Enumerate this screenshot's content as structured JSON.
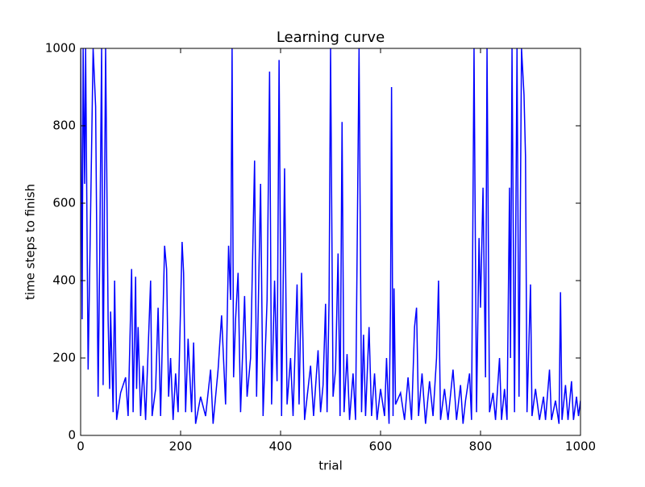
{
  "chart_data": {
    "type": "line",
    "title": "Learning curve",
    "x_label": "trial",
    "y_label": "time steps to finish",
    "xlim": [
      0,
      1000
    ],
    "ylim": [
      0,
      1000
    ],
    "xticks": [
      0,
      200,
      400,
      600,
      800,
      1000
    ],
    "yticks": [
      0,
      200,
      400,
      600,
      800,
      1000
    ],
    "x": [
      0,
      3,
      5,
      8,
      10,
      15,
      20,
      25,
      30,
      35,
      38,
      42,
      45,
      50,
      55,
      58,
      60,
      65,
      68,
      72,
      80,
      90,
      95,
      100,
      102,
      105,
      110,
      112,
      115,
      120,
      125,
      130,
      140,
      143,
      150,
      155,
      160,
      168,
      172,
      176,
      180,
      185,
      190,
      195,
      203,
      206,
      210,
      215,
      222,
      226,
      230,
      240,
      250,
      260,
      265,
      275,
      282,
      290,
      296,
      300,
      303,
      306,
      310,
      315,
      320,
      328,
      333,
      340,
      348,
      352,
      360,
      365,
      373,
      378,
      382,
      388,
      393,
      397,
      402,
      408,
      413,
      420,
      425,
      433,
      437,
      442,
      448,
      460,
      466,
      475,
      480,
      485,
      490,
      493,
      497,
      500,
      505,
      510,
      515,
      519,
      523,
      527,
      533,
      538,
      545,
      550,
      557,
      562,
      566,
      570,
      577,
      582,
      588,
      593,
      600,
      608,
      612,
      617,
      620,
      622,
      625,
      627,
      630,
      640,
      648,
      655,
      662,
      668,
      672,
      676,
      683,
      690,
      698,
      705,
      712,
      716,
      720,
      728,
      735,
      745,
      752,
      760,
      765,
      770,
      778,
      782,
      787,
      792,
      797,
      800,
      805,
      810,
      813,
      818,
      825,
      830,
      838,
      842,
      848,
      853,
      858,
      860,
      863,
      868,
      873,
      877,
      882,
      887,
      890,
      893,
      900,
      903,
      910,
      918,
      926,
      930,
      938,
      942,
      950,
      957,
      960,
      963,
      970,
      975,
      982,
      986,
      992,
      996,
      1000
    ],
    "series": [
      {
        "color": "#0000ff",
        "values": [
          1000,
          300,
          1000,
          650,
          1000,
          170,
          580,
          1000,
          850,
          100,
          440,
          1000,
          130,
          1000,
          300,
          120,
          320,
          60,
          400,
          40,
          110,
          150,
          50,
          320,
          430,
          60,
          410,
          120,
          280,
          50,
          180,
          40,
          400,
          50,
          120,
          330,
          50,
          490,
          430,
          100,
          200,
          40,
          160,
          60,
          500,
          420,
          60,
          250,
          60,
          240,
          30,
          100,
          50,
          170,
          30,
          170,
          310,
          80,
          490,
          350,
          1000,
          150,
          300,
          420,
          60,
          360,
          100,
          200,
          710,
          100,
          650,
          50,
          350,
          940,
          80,
          400,
          140,
          970,
          50,
          690,
          80,
          200,
          50,
          390,
          80,
          420,
          40,
          180,
          50,
          220,
          60,
          130,
          340,
          60,
          350,
          1000,
          100,
          170,
          470,
          50,
          810,
          60,
          210,
          40,
          160,
          40,
          1000,
          60,
          260,
          50,
          280,
          50,
          160,
          40,
          120,
          50,
          200,
          30,
          340,
          900,
          50,
          380,
          80,
          110,
          40,
          150,
          40,
          280,
          330,
          50,
          160,
          30,
          140,
          50,
          200,
          400,
          40,
          120,
          40,
          170,
          40,
          130,
          30,
          90,
          160,
          40,
          1000,
          60,
          510,
          330,
          640,
          150,
          1000,
          60,
          110,
          40,
          200,
          40,
          120,
          40,
          640,
          200,
          1000,
          60,
          1000,
          100,
          1000,
          880,
          720,
          60,
          390,
          50,
          120,
          40,
          100,
          40,
          170,
          40,
          90,
          30,
          370,
          40,
          130,
          40,
          140,
          40,
          100,
          50,
          90
        ]
      }
    ]
  }
}
